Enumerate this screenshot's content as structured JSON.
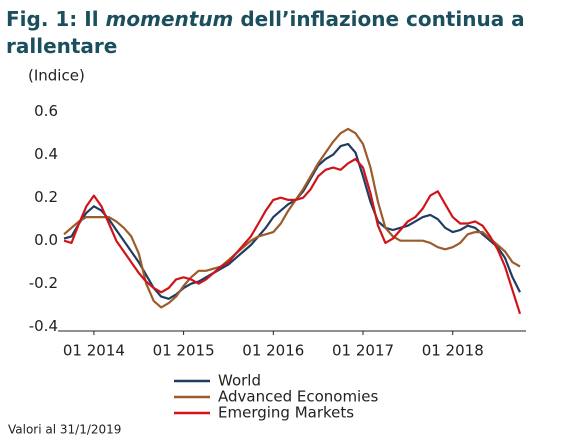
{
  "chart_data": {
    "type": "line",
    "title": [
      "Fig. 1: Il ",
      "momentum",
      " dell’inflazione continua a rallentare"
    ],
    "y_label": "(Indice)",
    "note": "Valori al 31/1/2019",
    "categories": [
      null,
      null,
      null,
      null,
      "01 2014",
      null,
      null,
      null,
      null,
      null,
      null,
      null,
      null,
      null,
      null,
      null,
      "01 2015",
      null,
      null,
      null,
      null,
      null,
      null,
      null,
      null,
      null,
      null,
      null,
      "01 2016",
      null,
      null,
      null,
      null,
      null,
      null,
      null,
      null,
      null,
      null,
      null,
      "01 2017",
      null,
      null,
      null,
      null,
      null,
      null,
      null,
      null,
      null,
      null,
      null,
      "01 2018",
      null,
      null,
      null,
      null,
      null,
      null,
      null,
      null,
      null
    ],
    "series": [
      {
        "name": "World",
        "color": "#1f3d63",
        "values": [
          0.01,
          0.02,
          0.08,
          0.13,
          0.16,
          0.14,
          0.1,
          0.05,
          0.0,
          -0.05,
          -0.1,
          -0.16,
          -0.22,
          -0.26,
          -0.27,
          -0.25,
          -0.22,
          -0.2,
          -0.19,
          -0.17,
          -0.15,
          -0.13,
          -0.11,
          -0.08,
          -0.05,
          -0.02,
          0.02,
          0.06,
          0.11,
          0.14,
          0.17,
          0.19,
          0.23,
          0.29,
          0.35,
          0.38,
          0.4,
          0.44,
          0.45,
          0.41,
          0.3,
          0.18,
          0.09,
          0.06,
          0.05,
          0.06,
          0.07,
          0.09,
          0.11,
          0.12,
          0.1,
          0.06,
          0.04,
          0.05,
          0.07,
          0.06,
          0.03,
          0.0,
          -0.03,
          -0.08,
          -0.17,
          -0.24
        ]
      },
      {
        "name": "Advanced Economies",
        "color": "#9c5b2a",
        "values": [
          0.03,
          0.06,
          0.09,
          0.11,
          0.11,
          0.11,
          0.11,
          0.09,
          0.06,
          0.02,
          -0.06,
          -0.2,
          -0.28,
          -0.31,
          -0.29,
          -0.26,
          -0.21,
          -0.17,
          -0.14,
          -0.14,
          -0.13,
          -0.12,
          -0.09,
          -0.06,
          -0.03,
          0.0,
          0.02,
          0.03,
          0.04,
          0.08,
          0.14,
          0.19,
          0.24,
          0.3,
          0.36,
          0.41,
          0.46,
          0.5,
          0.52,
          0.5,
          0.45,
          0.34,
          0.18,
          0.06,
          0.02,
          0.0,
          0.0,
          0.0,
          0.0,
          -0.01,
          -0.03,
          -0.04,
          -0.03,
          -0.01,
          0.03,
          0.04,
          0.04,
          0.01,
          -0.02,
          -0.05,
          -0.1,
          -0.12
        ]
      },
      {
        "name": "Emerging Markets",
        "color": "#d0141a",
        "values": [
          0.0,
          -0.01,
          0.08,
          0.16,
          0.21,
          0.16,
          0.08,
          0.0,
          -0.05,
          -0.1,
          -0.15,
          -0.19,
          -0.22,
          -0.24,
          -0.22,
          -0.18,
          -0.17,
          -0.18,
          -0.2,
          -0.18,
          -0.15,
          -0.12,
          -0.1,
          -0.06,
          -0.02,
          0.02,
          0.08,
          0.14,
          0.19,
          0.2,
          0.19,
          0.19,
          0.2,
          0.24,
          0.3,
          0.33,
          0.34,
          0.33,
          0.36,
          0.38,
          0.34,
          0.22,
          0.07,
          -0.01,
          0.01,
          0.05,
          0.09,
          0.11,
          0.15,
          0.21,
          0.23,
          0.17,
          0.11,
          0.08,
          0.08,
          0.09,
          0.07,
          0.02,
          -0.04,
          -0.12,
          -0.23,
          -0.34
        ]
      }
    ],
    "ylim": [
      -0.42,
      0.65
    ],
    "yticks": [
      -0.4,
      -0.2,
      {
        "value": 0,
        "label": "0.0"
      },
      0.2,
      0.4,
      0.6
    ]
  }
}
